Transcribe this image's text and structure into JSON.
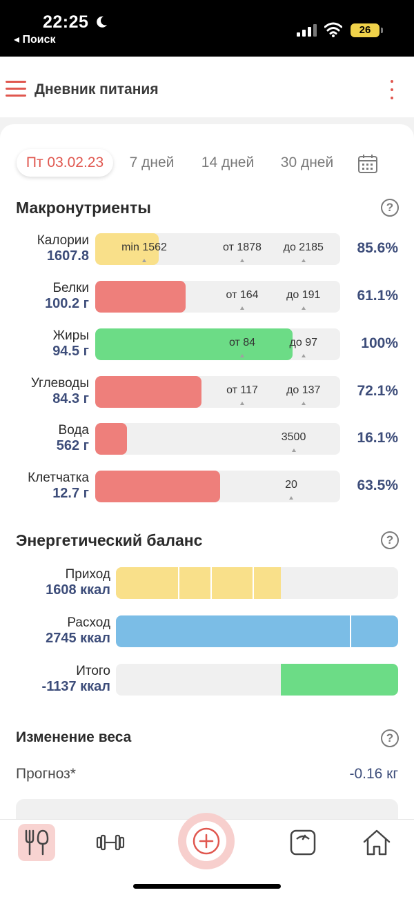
{
  "status_bar": {
    "time": "22:25",
    "back_label": "◂ Поиск",
    "battery": "26"
  },
  "header": {
    "title": "Дневник питания"
  },
  "tabs": [
    {
      "label": "Пт 03.02.23",
      "active": true
    },
    {
      "label": "7 дней",
      "active": false
    },
    {
      "label": "14 дней",
      "active": false
    },
    {
      "label": "30 дней",
      "active": false
    }
  ],
  "macros": {
    "title": "Макронутриенты",
    "help": "?",
    "items": [
      {
        "label": "Калории",
        "value": "1607.8",
        "percent": "85.6%",
        "fill": 0.26,
        "color": "#f9e08a",
        "marks": [
          {
            "text": "min 1562",
            "pos": 0.2
          },
          {
            "text": "от 1878",
            "pos": 0.6
          },
          {
            "text": "до 2185",
            "pos": 0.85
          }
        ]
      },
      {
        "label": "Белки",
        "value": "100.2 г",
        "percent": "61.1%",
        "fill": 0.37,
        "color": "#ee7f7b",
        "marks": [
          {
            "text": "от 164",
            "pos": 0.6
          },
          {
            "text": "до 191",
            "pos": 0.85
          }
        ]
      },
      {
        "label": "Жиры",
        "value": "94.5 г",
        "percent": "100%",
        "fill": 0.805,
        "color": "#6cdc86",
        "marks": [
          {
            "text": "от 84",
            "pos": 0.6
          },
          {
            "text": "до 97",
            "pos": 0.85
          }
        ]
      },
      {
        "label": "Углеводы",
        "value": "84.3 г",
        "percent": "72.1%",
        "fill": 0.435,
        "color": "#ee7f7b",
        "marks": [
          {
            "text": "от 117",
            "pos": 0.6
          },
          {
            "text": "до 137",
            "pos": 0.85
          }
        ]
      },
      {
        "label": "Вода",
        "value": "562 г",
        "percent": "16.1%",
        "fill": 0.13,
        "color": "#ee7f7b",
        "marks": [
          {
            "text": "3500",
            "pos": 0.81
          }
        ]
      },
      {
        "label": "Клетчатка",
        "value": "12.7 г",
        "percent": "63.5%",
        "fill": 0.51,
        "color": "#ee7f7b",
        "marks": [
          {
            "text": "20",
            "pos": 0.8
          }
        ]
      }
    ]
  },
  "energy": {
    "title": "Энергетический баланс",
    "help": "?",
    "items": [
      {
        "label": "Приход",
        "value": "1608 ккал",
        "start": 0,
        "end": 0.585,
        "color": "#f9e08a",
        "dividers": [
          0.22,
          0.335,
          0.485
        ]
      },
      {
        "label": "Расход",
        "value": "2745 ккал",
        "start": 0,
        "end": 1.0,
        "color": "#7bbde6",
        "dividers": [
          0.83
        ]
      },
      {
        "label": "Итого",
        "value": "-1137 ккал",
        "start": 0.585,
        "end": 1.0,
        "color": "#6cdc86",
        "dividers": []
      }
    ]
  },
  "weight": {
    "title": "Изменение веса",
    "help": "?",
    "forecast_label": "Прогноз*",
    "forecast_value": "-0.16 кг"
  },
  "bottom_nav": {
    "items": [
      "fork-knife-icon",
      "dumbbell-icon",
      "add-icon",
      "scale-icon",
      "home-icon"
    ],
    "active": "fork-knife-icon"
  },
  "colors": {
    "accent": "#e0574f",
    "value_text": "#3d4d7a"
  }
}
